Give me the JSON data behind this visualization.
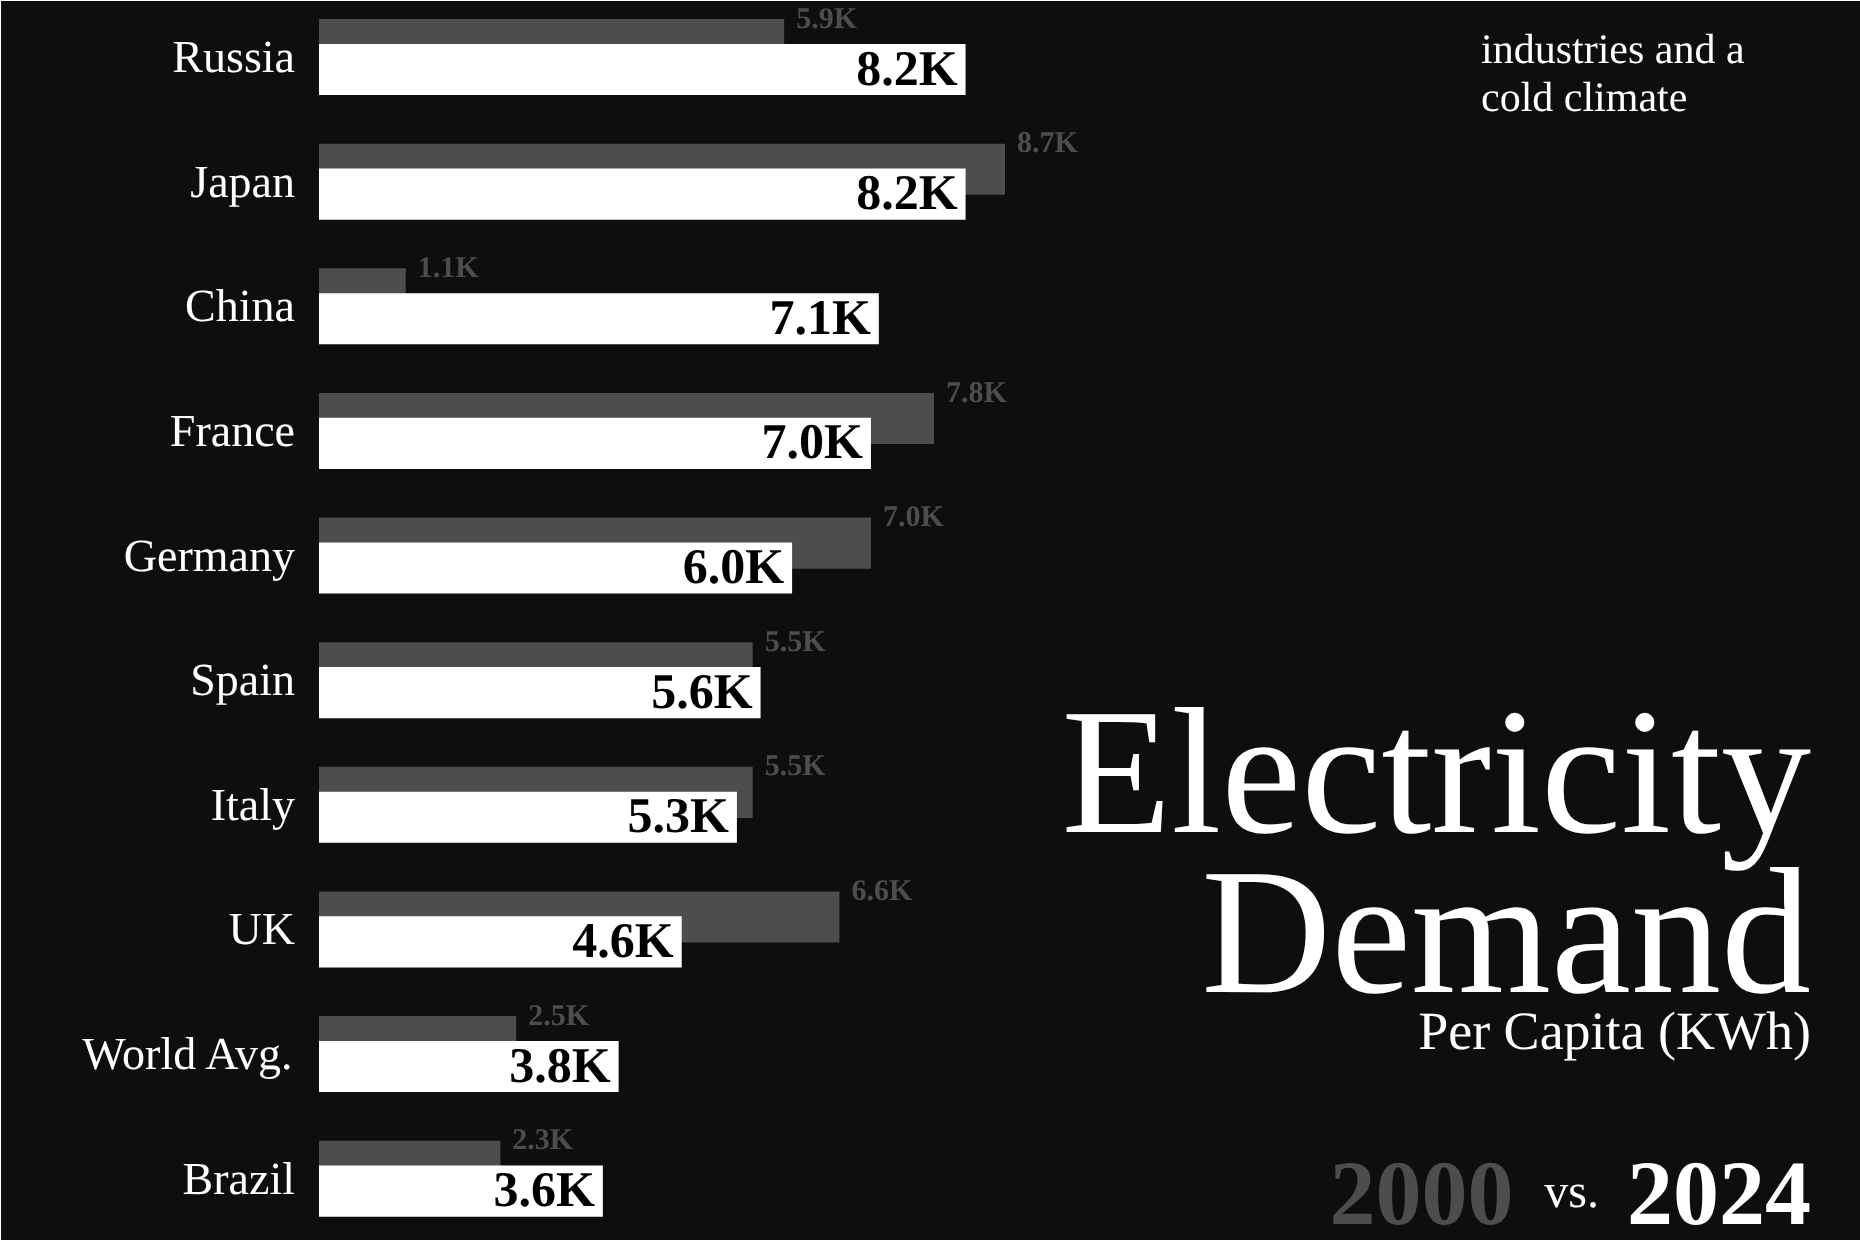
{
  "chart_data": {
    "type": "bar",
    "orientation": "horizontal",
    "title": "Electricity Demand",
    "subtitle": "Per Capita (KWh)",
    "categories": [
      "Russia",
      "Japan",
      "China",
      "France",
      "Germany",
      "Spain",
      "Italy",
      "UK",
      "World Avg.",
      "Brazil"
    ],
    "series": [
      {
        "name": "2000",
        "color": "#4d4d4d",
        "values": [
          5900,
          8700,
          1100,
          7800,
          7000,
          5500,
          5500,
          6600,
          2500,
          2300
        ],
        "value_labels": [
          "5.9K",
          "8.7K",
          "1.1K",
          "7.8K",
          "7.0K",
          "5.5K",
          "5.5K",
          "6.6K",
          "2.5K",
          "2.3K"
        ]
      },
      {
        "name": "2024",
        "color": "#ffffff",
        "values": [
          8200,
          8200,
          7100,
          7000,
          6000,
          5600,
          5300,
          4600,
          3800,
          3600
        ],
        "value_labels": [
          "8.2K",
          "8.2K",
          "7.1K",
          "7.0K",
          "6.0K",
          "5.6K",
          "5.3K",
          "4.6K",
          "3.8K",
          "3.6K"
        ]
      }
    ],
    "legend": "bottom right",
    "annotations": [
      "industries and a cold climate",
      "vs."
    ]
  }
}
